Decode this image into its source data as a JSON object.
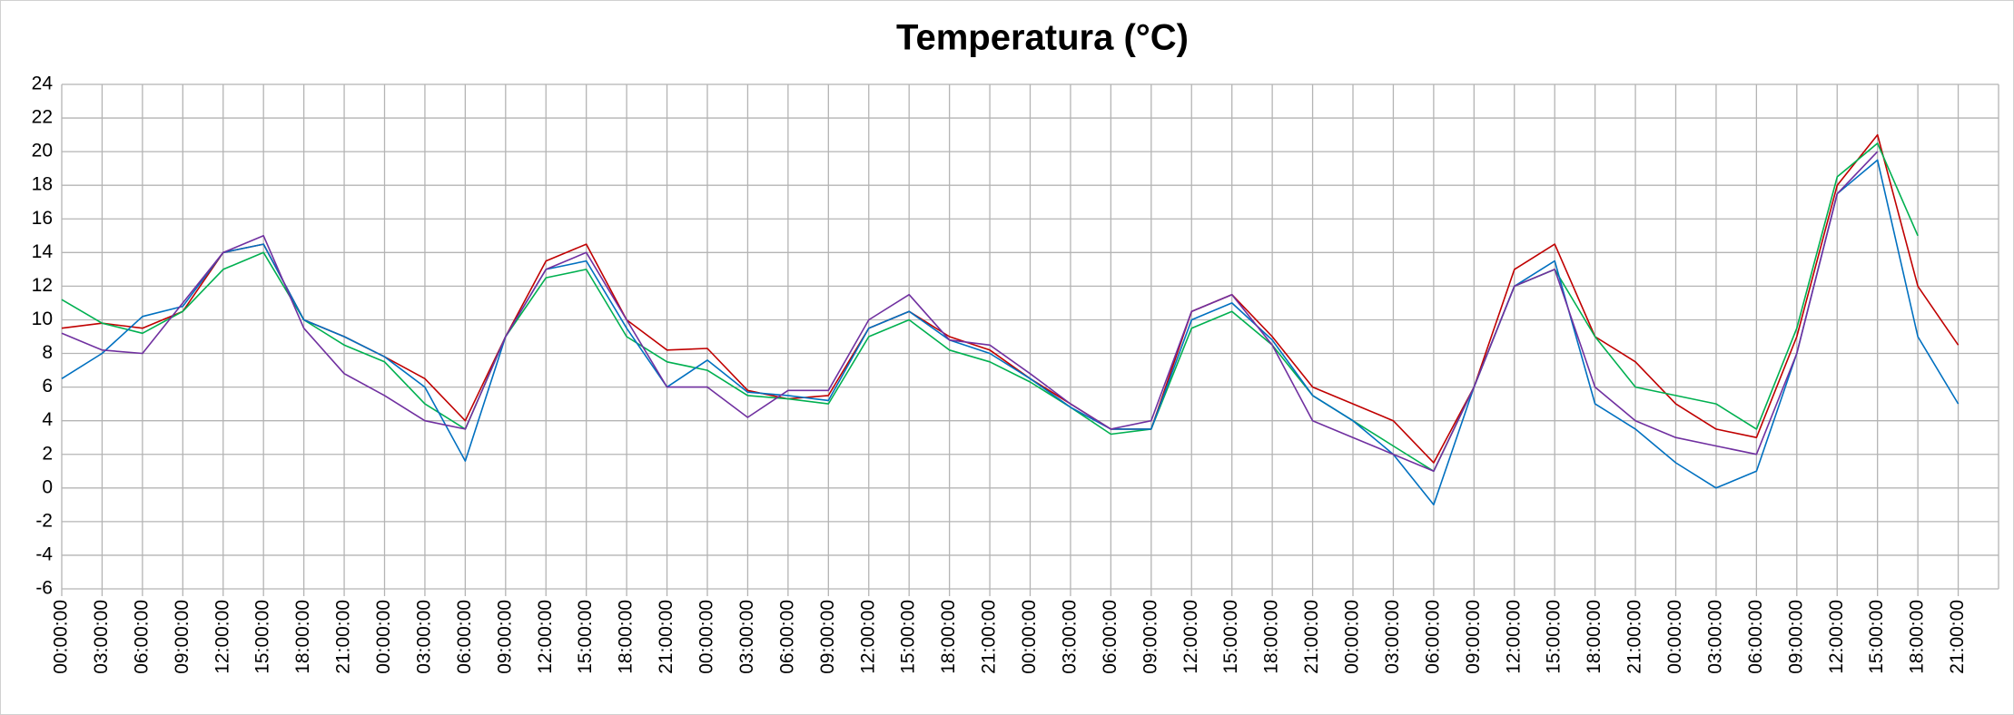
{
  "chart_data": {
    "type": "line",
    "title": "Temperatura (°C)",
    "categories": [
      "00:00:00",
      "03:00:00",
      "06:00:00",
      "09:00:00",
      "12:00:00",
      "15:00:00",
      "18:00:00",
      "21:00:00",
      "00:00:00",
      "03:00:00",
      "06:00:00",
      "09:00:00",
      "12:00:00",
      "15:00:00",
      "18:00:00",
      "21:00:00",
      "00:00:00",
      "03:00:00",
      "06:00:00",
      "09:00:00",
      "12:00:00",
      "15:00:00",
      "18:00:00",
      "21:00:00",
      "00:00:00",
      "03:00:00",
      "06:00:00",
      "09:00:00",
      "12:00:00",
      "15:00:00",
      "18:00:00",
      "21:00:00",
      "00:00:00",
      "03:00:00",
      "06:00:00",
      "09:00:00",
      "12:00:00",
      "15:00:00",
      "18:00:00",
      "21:00:00",
      "00:00:00",
      "03:00:00",
      "06:00:00",
      "09:00:00",
      "12:00:00",
      "15:00:00",
      "18:00:00",
      "21:00:00"
    ],
    "series": [
      {
        "color": "#c00000",
        "values": [
          9.5,
          9.8,
          9.5,
          10.5,
          14,
          14.5,
          10,
          9,
          7.8,
          6.5,
          4,
          9,
          13.5,
          14.5,
          10,
          8.2,
          8.3,
          5.8,
          5.3,
          5.5,
          9.5,
          10.5,
          9,
          8.2,
          6.5,
          5,
          3.5,
          3.5,
          10.5,
          11.5,
          9,
          6,
          5,
          4,
          1.5,
          6,
          13,
          14.5,
          9,
          7.5,
          5,
          3.5,
          3,
          9,
          18,
          21,
          12,
          8.5
        ]
      },
      {
        "color": "#00b050",
        "values": [
          11.2,
          9.8,
          9.2,
          10.5,
          13,
          14,
          10,
          8.5,
          7.5,
          5,
          3.5,
          9,
          12.5,
          13,
          9,
          7.5,
          7,
          5.5,
          5.3,
          5,
          9,
          10,
          8.2,
          7.5,
          6.3,
          4.8,
          3.2,
          3.5,
          9.5,
          10.5,
          8.5,
          5.5,
          4,
          2.5,
          1,
          6,
          12,
          13,
          9,
          6,
          5.5,
          5,
          3.5,
          9.5,
          18.5,
          20.5,
          15,
          null
        ]
      },
      {
        "color": "#0070c0",
        "values": [
          6.5,
          8,
          10.2,
          10.8,
          14,
          14.5,
          10,
          9,
          7.8,
          6,
          1.6,
          9,
          13,
          13.5,
          9.5,
          6,
          7.6,
          5.7,
          5.5,
          5.2,
          9.5,
          10.5,
          8.8,
          8,
          6.5,
          4.8,
          3.5,
          3.5,
          10,
          11,
          8.8,
          5.5,
          4,
          2,
          -1,
          6,
          12,
          13.5,
          5,
          3.5,
          1.5,
          0,
          1,
          8,
          17.5,
          19.5,
          9,
          5
        ]
      },
      {
        "color": "#7030a0",
        "values": [
          9.2,
          8.2,
          8,
          11,
          14,
          15,
          9.5,
          6.8,
          5.5,
          4,
          3.5,
          9,
          13,
          14,
          10,
          6,
          6,
          4.2,
          5.8,
          5.8,
          10,
          11.5,
          8.8,
          8.5,
          6.8,
          5,
          3.5,
          4,
          10.5,
          11.5,
          8.5,
          4,
          3,
          2,
          1,
          6,
          12,
          13,
          6,
          4,
          3,
          2.5,
          2,
          8,
          17.5,
          20,
          null,
          null
        ]
      }
    ],
    "ylim": [
      -6,
      24
    ],
    "yticks": [
      -6,
      -4,
      -2,
      0,
      2,
      4,
      6,
      8,
      10,
      12,
      14,
      16,
      18,
      20,
      22,
      24
    ],
    "grid": true
  }
}
